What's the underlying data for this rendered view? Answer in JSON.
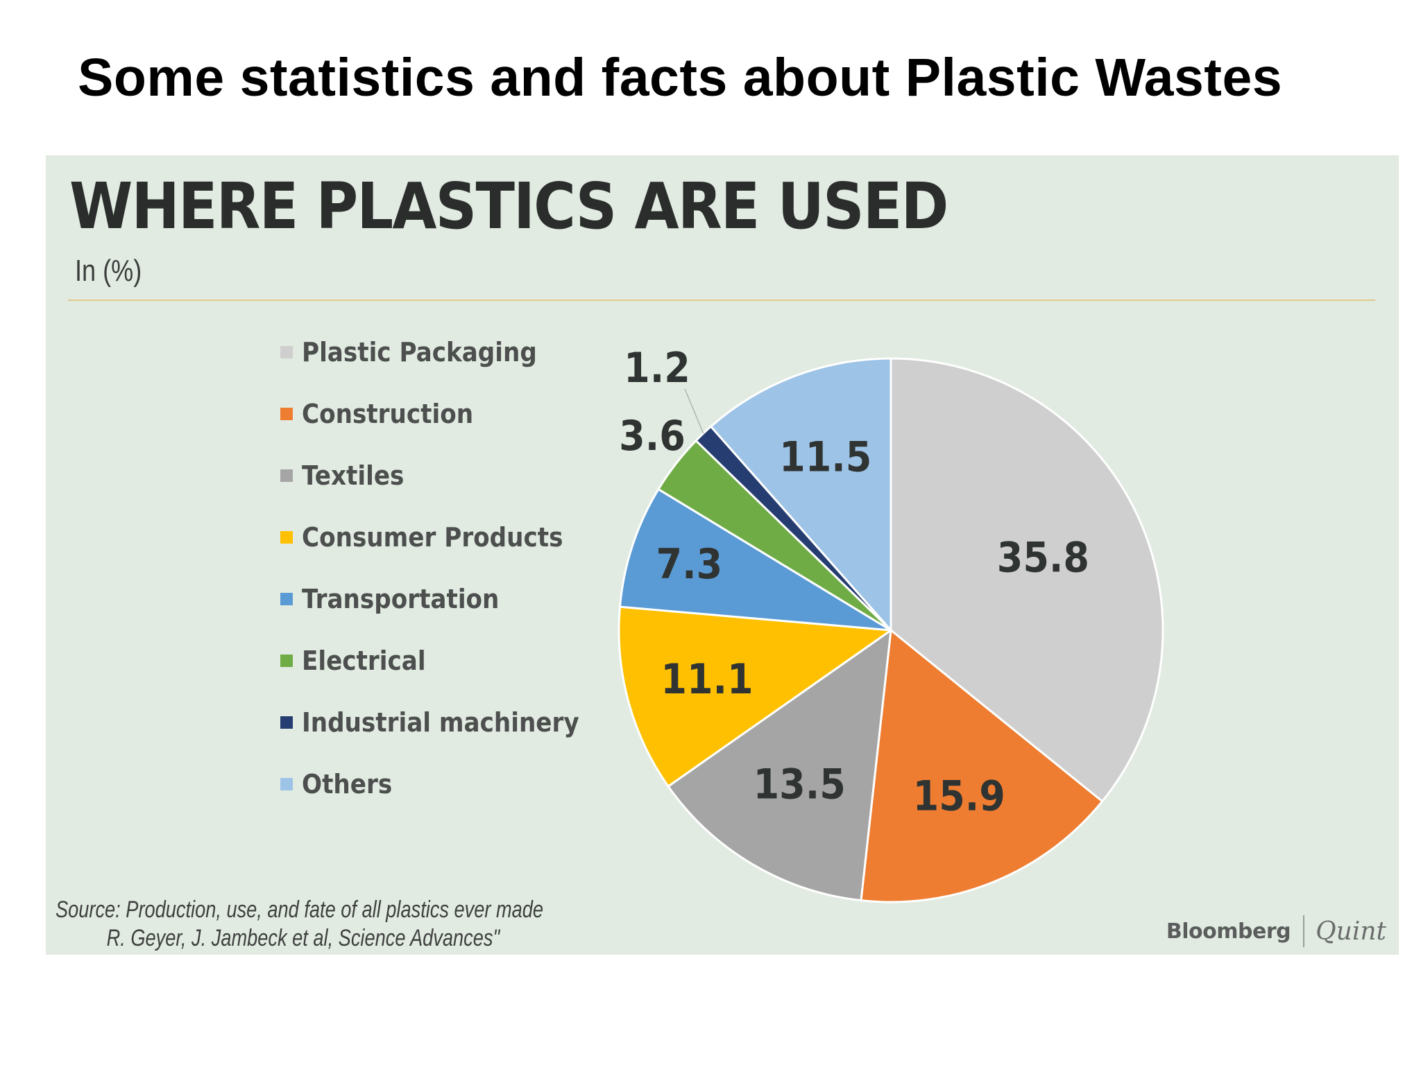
{
  "slide": {
    "title": "Some statistics and facts about Plastic Wastes"
  },
  "chart_data": {
    "type": "pie",
    "title": "WHERE PLASTICS ARE USED",
    "subtitle": "In (%)",
    "unit": "%",
    "legend_position": "left",
    "categories": [
      "Plastic Packaging",
      "Construction",
      "Textiles",
      "Consumer Products",
      "Transportation",
      "Electrical",
      "Industrial machinery",
      "Others"
    ],
    "values": [
      35.8,
      15.9,
      13.5,
      11.1,
      7.3,
      3.6,
      1.2,
      11.5
    ],
    "colors": [
      "#cfcfcf",
      "#ee7d31",
      "#a5a5a5",
      "#fec000",
      "#5b9bd5",
      "#6fac46",
      "#253d70",
      "#9dc3e6"
    ],
    "source_lines": [
      "Source: Production, use, and fate of all plastics ever made",
      "R. Geyer, J. Jambeck et al, Science Advances\""
    ],
    "brand": {
      "primary": "Bloomberg",
      "secondary": "Quint"
    }
  }
}
